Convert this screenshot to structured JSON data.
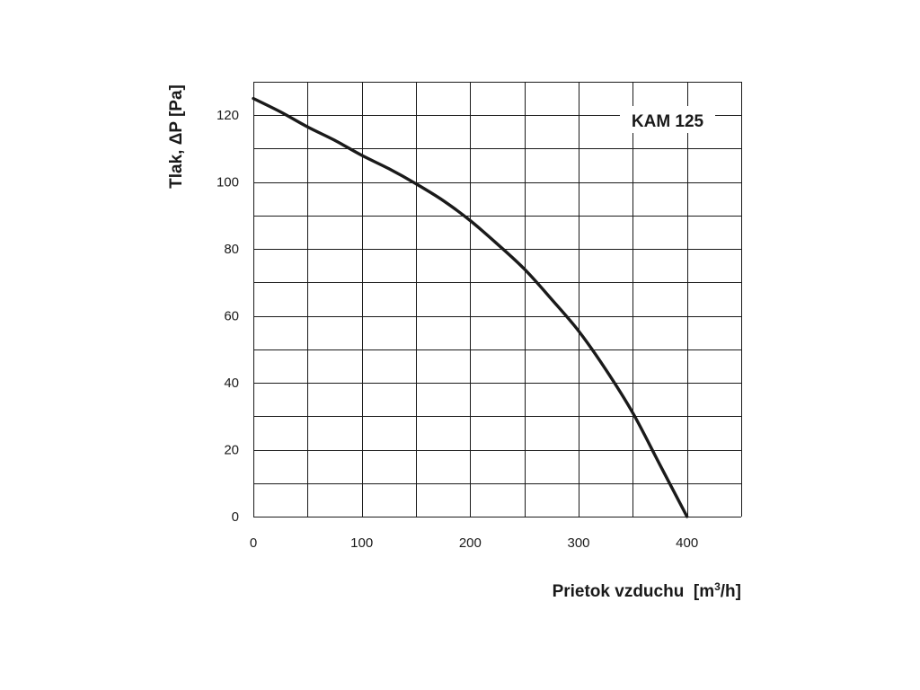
{
  "chart_data": {
    "type": "line",
    "xlabel": "Prietok vzduchu  [m³/h]",
    "ylabel": "Tlak, ΔP [Pa]",
    "xlim": [
      0,
      450
    ],
    "ylim": [
      0,
      130
    ],
    "x_ticks": [
      0,
      100,
      200,
      300,
      400
    ],
    "y_ticks": [
      0,
      20,
      40,
      60,
      80,
      100,
      120
    ],
    "x_ticks_labeled": [
      "0",
      "100",
      "200",
      "300",
      "400"
    ],
    "y_ticks_labeled": [
      "0",
      "20",
      "40",
      "60",
      "80",
      "100",
      "120"
    ],
    "x_grid_step": 50,
    "y_grid_step": 10,
    "grid": true,
    "legend_position": "top-right",
    "series": [
      {
        "name": "KAM 125",
        "x": [
          0,
          25,
          50,
          75,
          100,
          125,
          150,
          175,
          200,
          225,
          250,
          275,
          300,
          325,
          350,
          375,
          400
        ],
        "y": [
          125,
          121,
          116.5,
          112.5,
          108,
          104,
          99.5,
          94.5,
          88.5,
          81.5,
          74,
          65,
          55.5,
          44,
          31,
          15.5,
          0
        ]
      }
    ],
    "colors": {
      "line": "#1a1a1a",
      "grid": "#1a1a1a",
      "background": "#ffffff"
    }
  }
}
